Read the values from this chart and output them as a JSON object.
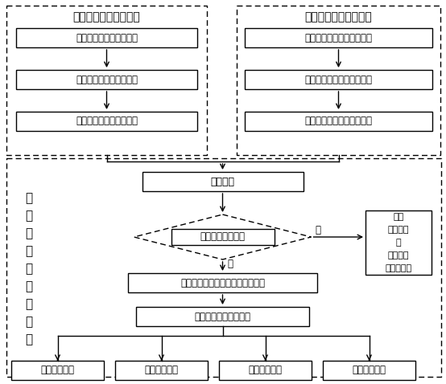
{
  "bg_color": "#ffffff",
  "left_section_title": "扰动大气风场实时探测",
  "right_section_title": "背景大气风场统计建模",
  "left_boxes": [
    "激光雷达扫描特定的空域",
    "激光回波信号的反演处理",
    "获取实时的扰动大气风场"
  ],
  "right_boxes": [
    "长期观测空域背景大气条件",
    "获取背景大气运动变化规律",
    "创建背景大气风场的数据库"
  ],
  "side_label_chars": [
    "尾",
    "洛",
    "扰",
    "动",
    "场",
    "解",
    "算",
    "处",
    "理"
  ],
  "wind_disturbance": "风场扰动",
  "diamond_label": "风场扰动类型鉴别",
  "yes_label": "是",
  "no_label": "否",
  "aerial_target": "空中目标风场扰动（尾洛扰动场）",
  "feature_params": "尾洛扰动场的特征参数",
  "other_box_lines": [
    "其它",
    "风场扰动",
    "如",
    "大气絊流",
    "高空风切变"
  ],
  "bottom_boxes": [
    "尾洛渍核位置",
    "尾洛渍核半径",
    "尾洛渍核间距",
    "尾洛渍流环量"
  ],
  "figsize": [
    5.54,
    4.78
  ],
  "dpi": 100
}
